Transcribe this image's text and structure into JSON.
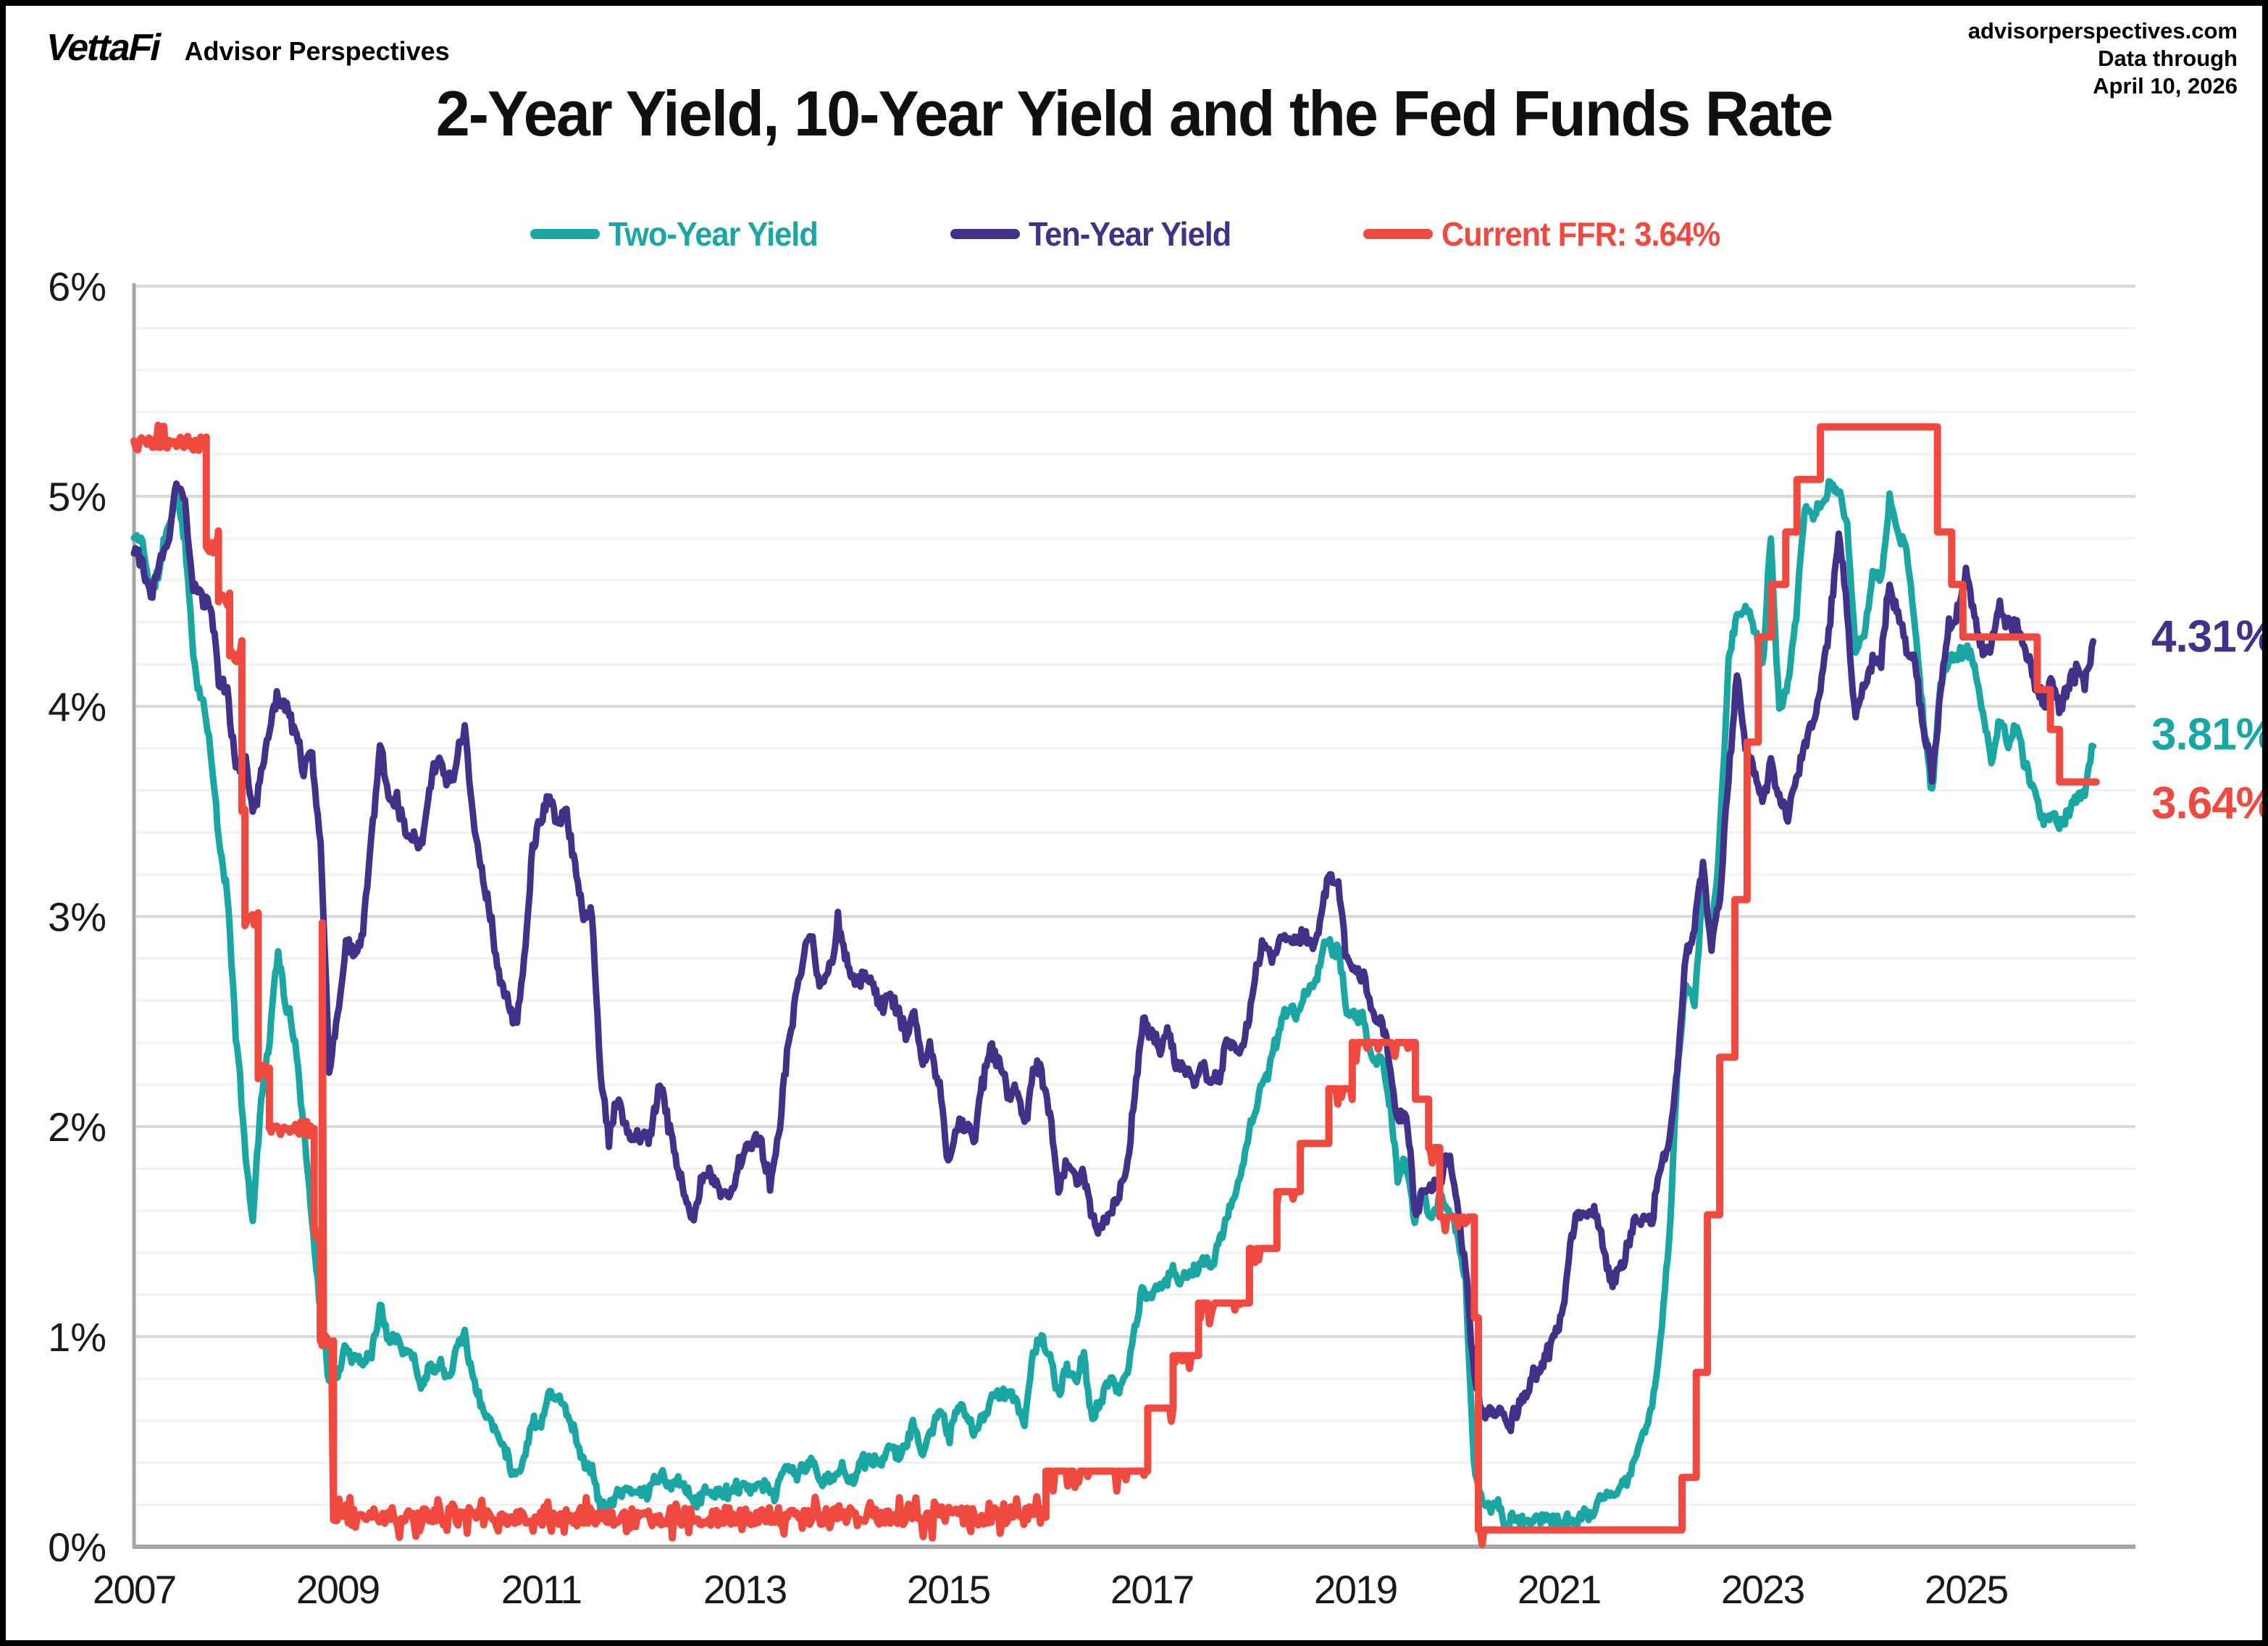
{
  "header": {
    "logo_text": "VettaFi",
    "logo_sub": "Advisor Perspectives",
    "source_line1": "advisorperspectives.com",
    "source_line2": "Data through",
    "source_line3": "April 10, 2026"
  },
  "title": "2-Year Yield, 10-Year Yield and the Fed Funds Rate",
  "legend": [
    {
      "label": "Two-Year Yield",
      "color": "#1aa7a3"
    },
    {
      "label": "Ten-Year Yield",
      "color": "#433189"
    },
    {
      "label": "Current FFR: 3.64%",
      "color": "#f0493f"
    }
  ],
  "colors": {
    "two_year": "#1aa7a3",
    "ten_year": "#433189",
    "ffr": "#f0493f",
    "axis": "#a6a6a6",
    "grid_major": "#d9d9d9",
    "grid_minor": "#f1f1f1",
    "text": "#1a1a1a"
  },
  "chart_data": {
    "type": "line",
    "title": "2-Year Yield, 10-Year Yield and the Fed Funds Rate",
    "xlabel": "",
    "ylabel": "",
    "x_axis": {
      "range": [
        2007.0,
        2026.66
      ],
      "ticks": [
        2007,
        2009,
        2011,
        2013,
        2015,
        2017,
        2019,
        2021,
        2023,
        2025
      ],
      "grid": false
    },
    "y_axis": {
      "range": [
        0,
        6
      ],
      "tick_labels": [
        "0%",
        "1%",
        "2%",
        "3%",
        "4%",
        "5%",
        "6%"
      ],
      "major_step": 1,
      "minor_step": 0.2,
      "grid": true
    },
    "legend_position": "top",
    "annotations": [
      {
        "text": "4.31%",
        "value": 4.31,
        "series": "Ten-Year Yield",
        "color": "#433189"
      },
      {
        "text": "3.81%",
        "value": 3.81,
        "series": "Two-Year Yield",
        "color": "#1aa7a3"
      },
      {
        "text": "3.64%",
        "value": 3.64,
        "series": "Current FFR",
        "color": "#f0493f"
      }
    ],
    "series": [
      {
        "name": "Two-Year Yield",
        "color": "#1aa7a3",
        "kind": "monthly",
        "start_year": 2007,
        "step_months": 1,
        "end_value": 3.81,
        "values": [
          4.8,
          4.78,
          4.55,
          4.65,
          4.85,
          5.0,
          4.82,
          4.25,
          4.05,
          3.8,
          3.35,
          3.1,
          2.45,
          1.95,
          1.55,
          2.15,
          2.45,
          2.85,
          2.55,
          2.4,
          2.05,
          1.55,
          1.15,
          0.8,
          0.8,
          0.95,
          0.9,
          0.9,
          0.95,
          1.15,
          1.02,
          1.05,
          0.95,
          0.9,
          0.78,
          0.9,
          0.9,
          0.85,
          0.98,
          1.05,
          0.8,
          0.68,
          0.6,
          0.52,
          0.45,
          0.36,
          0.45,
          0.62,
          0.6,
          0.78,
          0.7,
          0.66,
          0.54,
          0.42,
          0.39,
          0.21,
          0.18,
          0.27,
          0.25,
          0.25,
          0.24,
          0.29,
          0.34,
          0.27,
          0.28,
          0.29,
          0.23,
          0.26,
          0.25,
          0.28,
          0.26,
          0.25,
          0.26,
          0.26,
          0.25,
          0.23,
          0.29,
          0.37,
          0.33,
          0.37,
          0.4,
          0.32,
          0.29,
          0.37,
          0.37,
          0.33,
          0.43,
          0.42,
          0.38,
          0.46,
          0.5,
          0.48,
          0.58,
          0.46,
          0.52,
          0.65,
          0.52,
          0.62,
          0.6,
          0.54,
          0.61,
          0.69,
          0.69,
          0.71,
          0.7,
          0.63,
          0.89,
          1.0,
          0.88,
          0.73,
          0.86,
          0.76,
          0.88,
          0.62,
          0.68,
          0.77,
          0.77,
          0.84,
          1.0,
          1.22,
          1.2,
          1.21,
          1.3,
          1.26,
          1.3,
          1.36,
          1.37,
          1.33,
          1.44,
          1.58,
          1.7,
          1.9,
          2.07,
          2.24,
          2.29,
          2.44,
          2.55,
          2.55,
          2.65,
          2.64,
          2.81,
          2.87,
          2.84,
          2.55,
          2.52,
          2.48,
          2.3,
          2.36,
          2.15,
          1.78,
          1.83,
          1.55,
          1.68,
          1.56,
          1.62,
          1.6,
          1.5,
          1.25,
          0.35,
          0.21,
          0.17,
          0.18,
          0.14,
          0.14,
          0.13,
          0.15,
          0.16,
          0.12,
          0.12,
          0.12,
          0.15,
          0.16,
          0.15,
          0.22,
          0.21,
          0.22,
          0.27,
          0.43,
          0.53,
          0.7,
          1.0,
          1.45,
          2.3,
          2.65,
          2.6,
          3.15,
          2.92,
          3.4,
          4.2,
          4.45,
          4.48,
          4.4,
          4.2,
          4.8,
          3.95,
          4.1,
          4.4,
          4.9,
          4.85,
          4.98,
          5.08,
          5.05,
          4.85,
          4.25,
          4.35,
          4.65,
          4.6,
          4.98,
          4.85,
          4.72,
          4.38,
          3.9,
          3.58,
          4.1,
          4.2,
          4.25,
          4.28,
          4.2,
          3.95,
          3.72,
          3.95,
          3.8,
          3.9,
          3.7,
          3.58,
          3.48,
          3.5,
          3.45,
          3.5,
          3.55,
          3.62,
          3.81
        ]
      },
      {
        "name": "Ten-Year Yield",
        "color": "#433189",
        "kind": "monthly",
        "start_year": 2007,
        "step_months": 1,
        "end_value": 4.31,
        "values": [
          4.76,
          4.68,
          4.56,
          4.69,
          4.8,
          5.1,
          4.98,
          4.62,
          4.52,
          4.53,
          4.15,
          4.1,
          3.7,
          3.74,
          3.45,
          3.68,
          3.88,
          4.08,
          3.98,
          3.88,
          3.7,
          3.8,
          3.35,
          2.25,
          2.5,
          2.87,
          2.78,
          2.93,
          3.29,
          3.75,
          3.56,
          3.58,
          3.4,
          3.39,
          3.4,
          3.65,
          3.72,
          3.69,
          3.72,
          3.88,
          3.42,
          3.2,
          3.01,
          2.7,
          2.65,
          2.5,
          2.76,
          3.29,
          3.39,
          3.6,
          3.41,
          3.46,
          3.17,
          3.0,
          3.0,
          2.25,
          1.95,
          2.15,
          2.01,
          1.98,
          1.96,
          1.97,
          2.2,
          2.04,
          1.78,
          1.62,
          1.5,
          1.68,
          1.72,
          1.73,
          1.64,
          1.72,
          1.91,
          1.97,
          1.95,
          1.73,
          1.95,
          2.35,
          2.58,
          2.76,
          2.85,
          2.6,
          2.73,
          2.95,
          2.8,
          2.71,
          2.72,
          2.69,
          2.54,
          2.6,
          2.52,
          2.4,
          2.52,
          2.28,
          2.33,
          2.19,
          1.85,
          2.0,
          2.04,
          1.92,
          2.2,
          2.38,
          2.3,
          2.15,
          2.16,
          2.05,
          2.26,
          2.25,
          2.05,
          1.76,
          1.88,
          1.79,
          1.82,
          1.58,
          1.48,
          1.57,
          1.62,
          1.78,
          2.15,
          2.5,
          2.44,
          2.4,
          2.5,
          2.28,
          2.28,
          2.18,
          2.3,
          2.2,
          2.22,
          2.36,
          2.35,
          2.42,
          2.62,
          2.86,
          2.83,
          2.9,
          2.95,
          2.9,
          2.88,
          2.88,
          3.02,
          3.17,
          3.1,
          2.75,
          2.7,
          2.67,
          2.52,
          2.54,
          2.3,
          2.05,
          2.06,
          1.58,
          1.7,
          1.7,
          1.8,
          1.88,
          1.65,
          1.35,
          0.8,
          0.65,
          0.67,
          0.71,
          0.6,
          0.66,
          0.68,
          0.82,
          0.86,
          0.92,
          1.07,
          1.35,
          1.63,
          1.62,
          1.61,
          1.5,
          1.29,
          1.3,
          1.4,
          1.58,
          1.55,
          1.46,
          1.78,
          1.94,
          2.25,
          2.8,
          2.92,
          3.25,
          2.85,
          3.05,
          3.65,
          4.1,
          3.85,
          3.7,
          3.52,
          3.8,
          3.55,
          3.45,
          3.6,
          3.78,
          3.92,
          4.18,
          4.4,
          4.85,
          4.45,
          3.95,
          4.08,
          4.22,
          4.22,
          4.58,
          4.45,
          4.3,
          4.2,
          3.88,
          3.7,
          4.12,
          4.38,
          4.45,
          4.62,
          4.45,
          4.28,
          4.3,
          4.42,
          4.38,
          4.38,
          4.25,
          4.12,
          4.02,
          4.08,
          4.0,
          4.08,
          4.18,
          4.12,
          4.31
        ]
      },
      {
        "name": "Current FFR",
        "color": "#f0493f",
        "kind": "step",
        "end_year": 2026.28,
        "end_value": 3.64,
        "spikes": [
          [
            2008.85,
            2.97
          ]
        ],
        "points": [
          [
            2007.0,
            5.25
          ],
          [
            2007.71,
            4.76
          ],
          [
            2007.83,
            4.51
          ],
          [
            2007.94,
            4.24
          ],
          [
            2008.06,
            3.5
          ],
          [
            2008.09,
            2.99
          ],
          [
            2008.22,
            2.26
          ],
          [
            2008.33,
            1.99
          ],
          [
            2008.77,
            1.5
          ],
          [
            2008.83,
            0.98
          ],
          [
            2008.96,
            0.14
          ],
          [
            2015.96,
            0.36
          ],
          [
            2016.96,
            0.66
          ],
          [
            2017.21,
            0.91
          ],
          [
            2017.46,
            1.16
          ],
          [
            2017.96,
            1.42
          ],
          [
            2018.23,
            1.69
          ],
          [
            2018.46,
            1.92
          ],
          [
            2018.74,
            2.18
          ],
          [
            2018.97,
            2.4
          ],
          [
            2019.59,
            2.13
          ],
          [
            2019.72,
            1.9
          ],
          [
            2019.83,
            1.57
          ],
          [
            2020.17,
            1.09
          ],
          [
            2020.21,
            0.08
          ],
          [
            2022.21,
            0.33
          ],
          [
            2022.35,
            0.83
          ],
          [
            2022.46,
            1.58
          ],
          [
            2022.58,
            2.33
          ],
          [
            2022.73,
            3.08
          ],
          [
            2022.85,
            3.83
          ],
          [
            2022.96,
            4.33
          ],
          [
            2023.09,
            4.58
          ],
          [
            2023.23,
            4.83
          ],
          [
            2023.34,
            5.08
          ],
          [
            2023.57,
            5.33
          ],
          [
            2024.72,
            4.83
          ],
          [
            2024.86,
            4.58
          ],
          [
            2024.97,
            4.33
          ],
          [
            2025.7,
            4.08
          ],
          [
            2025.83,
            3.89
          ],
          [
            2025.92,
            3.64
          ]
        ]
      }
    ]
  }
}
